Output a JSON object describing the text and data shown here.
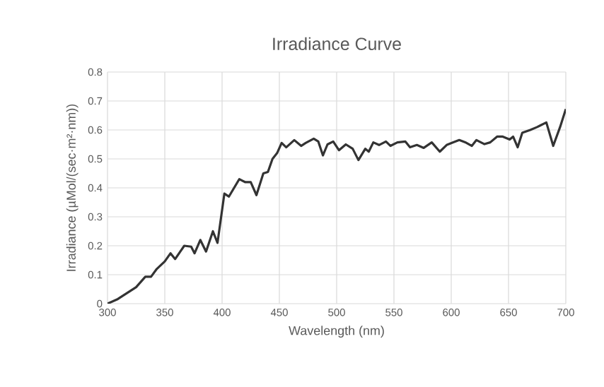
{
  "chart_data": {
    "type": "line",
    "title": "Irradiance Curve",
    "xlabel": "Wavelength (nm)",
    "ylabel": "Irradiance (µMol/(sec·m²·nm))",
    "xlim": [
      300,
      700
    ],
    "ylim": [
      0,
      0.8
    ],
    "xticks": [
      300,
      350,
      400,
      450,
      500,
      550,
      600,
      650,
      700
    ],
    "yticks": [
      0,
      0.1,
      0.2,
      0.3,
      0.4,
      0.5,
      0.6,
      0.7,
      0.8
    ],
    "grid": true,
    "series": [
      {
        "color": "#333333",
        "x": [
          300,
          309,
          325,
          333,
          338,
          343,
          350,
          355,
          359,
          367,
          373,
          376,
          381,
          386,
          392,
          396,
          402,
          406,
          415,
          420,
          425,
          430,
          436,
          440,
          444,
          448,
          452,
          456,
          463,
          469,
          473,
          480,
          484,
          488,
          492,
          497,
          502,
          508,
          514,
          519,
          525,
          528,
          532,
          537,
          543,
          547,
          553,
          560,
          564,
          570,
          576,
          583,
          590,
          596,
          601,
          607,
          613,
          618,
          622,
          629,
          634,
          640,
          645,
          651,
          654,
          658,
          662,
          669,
          675,
          683,
          689,
          695,
          700
        ],
        "values": [
          0,
          0.016,
          0.057,
          0.093,
          0.093,
          0.12,
          0.146,
          0.174,
          0.154,
          0.2,
          0.197,
          0.174,
          0.22,
          0.18,
          0.25,
          0.21,
          0.38,
          0.37,
          0.43,
          0.42,
          0.42,
          0.375,
          0.45,
          0.455,
          0.5,
          0.52,
          0.555,
          0.54,
          0.565,
          0.545,
          0.555,
          0.57,
          0.56,
          0.512,
          0.55,
          0.56,
          0.53,
          0.55,
          0.535,
          0.496,
          0.535,
          0.525,
          0.557,
          0.548,
          0.56,
          0.545,
          0.557,
          0.56,
          0.54,
          0.548,
          0.538,
          0.557,
          0.525,
          0.548,
          0.556,
          0.565,
          0.556,
          0.545,
          0.565,
          0.551,
          0.557,
          0.577,
          0.577,
          0.567,
          0.577,
          0.54,
          0.59,
          0.6,
          0.61,
          0.626,
          0.545,
          0.61,
          0.672
        ]
      }
    ]
  }
}
